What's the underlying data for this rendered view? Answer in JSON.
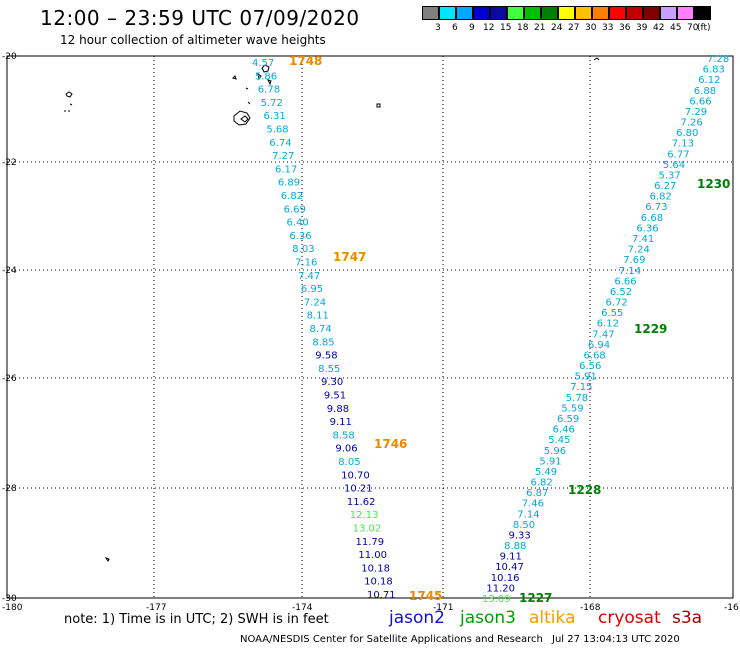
{
  "header": {
    "title": "12:00 – 23:59 UTC 07/09/2020",
    "subtitle": "12 hour collection of altimeter wave heights"
  },
  "colorbar": {
    "unit": "(ft)",
    "labels": [
      "3",
      "6",
      "9",
      "12",
      "15",
      "18",
      "21",
      "24",
      "27",
      "30",
      "33",
      "36",
      "39",
      "42",
      "45",
      "70"
    ],
    "colors": [
      "#808080",
      "#00e5ff",
      "#00a8ff",
      "#0000d0",
      "#0a0aa0",
      "#40ff40",
      "#00c000",
      "#008000",
      "#ffff00",
      "#ffc000",
      "#ff8000",
      "#ff0000",
      "#c00000",
      "#800000",
      "#c8a0ff",
      "#ff80ff",
      "#000000"
    ]
  },
  "axes": {
    "lat_labels": [
      "-20",
      "-22",
      "-24",
      "-26",
      "-28",
      "-30"
    ],
    "lon_labels": [
      "-180",
      "-177",
      "-174",
      "-171",
      "-168",
      "-16"
    ]
  },
  "track_colors": {
    "light": "#00aadd",
    "dark": "#0000b0",
    "green": "#50e050"
  },
  "track1": [
    {
      "t": "4.57",
      "c": "light"
    },
    {
      "t": "5.86",
      "c": "light"
    },
    {
      "t": "6.78",
      "c": "light"
    },
    {
      "t": "5.72",
      "c": "light"
    },
    {
      "t": "6.31",
      "c": "light"
    },
    {
      "t": "5.68",
      "c": "light"
    },
    {
      "t": "6.74",
      "c": "light"
    },
    {
      "t": "7.27",
      "c": "light"
    },
    {
      "t": "6.17",
      "c": "light"
    },
    {
      "t": "6.89",
      "c": "light"
    },
    {
      "t": "6.82",
      "c": "light"
    },
    {
      "t": "6.69",
      "c": "light"
    },
    {
      "t": "6.40",
      "c": "light"
    },
    {
      "t": "6.36",
      "c": "light"
    },
    {
      "t": "8.03",
      "c": "light"
    },
    {
      "t": "7.16",
      "c": "light"
    },
    {
      "t": "7.47",
      "c": "light"
    },
    {
      "t": "6.95",
      "c": "light"
    },
    {
      "t": "7.24",
      "c": "light"
    },
    {
      "t": "8.11",
      "c": "light"
    },
    {
      "t": "8.74",
      "c": "light"
    },
    {
      "t": "8.85",
      "c": "light"
    },
    {
      "t": "9.58",
      "c": "dark"
    },
    {
      "t": "8.55",
      "c": "light"
    },
    {
      "t": "9.30",
      "c": "dark"
    },
    {
      "t": "9.51",
      "c": "dark"
    },
    {
      "t": "9.88",
      "c": "dark"
    },
    {
      "t": "9.11",
      "c": "dark"
    },
    {
      "t": "8.58",
      "c": "light"
    },
    {
      "t": "9.06",
      "c": "dark"
    },
    {
      "t": "8.05",
      "c": "light"
    },
    {
      "t": "10.70",
      "c": "dark"
    },
    {
      "t": "10.21",
      "c": "dark"
    },
    {
      "t": "11.62",
      "c": "dark"
    },
    {
      "t": "12.13",
      "c": "green"
    },
    {
      "t": "13.02",
      "c": "green"
    },
    {
      "t": "11.79",
      "c": "dark"
    },
    {
      "t": "11.00",
      "c": "dark"
    },
    {
      "t": "10.18",
      "c": "dark"
    },
    {
      "t": "10.18",
      "c": "dark"
    },
    {
      "t": "10.71",
      "c": "dark"
    }
  ],
  "track1_times": [
    "1748",
    "1747",
    "1746",
    "1745"
  ],
  "track2": [
    {
      "t": "7.28",
      "c": "light"
    },
    {
      "t": "6.83",
      "c": "light"
    },
    {
      "t": "6.12",
      "c": "light"
    },
    {
      "t": "6.88",
      "c": "light"
    },
    {
      "t": "6.66",
      "c": "light"
    },
    {
      "t": "7.29",
      "c": "light"
    },
    {
      "t": "7.26",
      "c": "light"
    },
    {
      "t": "6.80",
      "c": "light"
    },
    {
      "t": "7.13",
      "c": "light"
    },
    {
      "t": "6.77",
      "c": "light"
    },
    {
      "t": "5.64",
      "c": "light"
    },
    {
      "t": "5.37",
      "c": "light"
    },
    {
      "t": "6.27",
      "c": "light"
    },
    {
      "t": "6.82",
      "c": "light"
    },
    {
      "t": "6.73",
      "c": "light"
    },
    {
      "t": "6.68",
      "c": "light"
    },
    {
      "t": "6.36",
      "c": "light"
    },
    {
      "t": "7.41",
      "c": "light"
    },
    {
      "t": "7.24",
      "c": "light"
    },
    {
      "t": "7.69",
      "c": "light"
    },
    {
      "t": "7.14",
      "c": "light"
    },
    {
      "t": "6.66",
      "c": "light"
    },
    {
      "t": "6.52",
      "c": "light"
    },
    {
      "t": "6.72",
      "c": "light"
    },
    {
      "t": "6.55",
      "c": "light"
    },
    {
      "t": "6.12",
      "c": "light"
    },
    {
      "t": "7.47",
      "c": "light"
    },
    {
      "t": "6.94",
      "c": "light"
    },
    {
      "t": "6.68",
      "c": "light"
    },
    {
      "t": "6.56",
      "c": "light"
    },
    {
      "t": "5.91",
      "c": "light"
    },
    {
      "t": "7.15",
      "c": "light"
    },
    {
      "t": "5.78",
      "c": "light"
    },
    {
      "t": "5.59",
      "c": "light"
    },
    {
      "t": "6.59",
      "c": "light"
    },
    {
      "t": "6.46",
      "c": "light"
    },
    {
      "t": "5.45",
      "c": "light"
    },
    {
      "t": "5.96",
      "c": "light"
    },
    {
      "t": "5.91",
      "c": "light"
    },
    {
      "t": "5.49",
      "c": "light"
    },
    {
      "t": "6.82",
      "c": "light"
    },
    {
      "t": "6.87",
      "c": "light"
    },
    {
      "t": "7.46",
      "c": "light"
    },
    {
      "t": "7.14",
      "c": "light"
    },
    {
      "t": "8.50",
      "c": "light"
    },
    {
      "t": "9.33",
      "c": "dark"
    },
    {
      "t": "8.88",
      "c": "light"
    },
    {
      "t": "9.11",
      "c": "dark"
    },
    {
      "t": "10.47",
      "c": "dark"
    },
    {
      "t": "10.16",
      "c": "dark"
    },
    {
      "t": "11.20",
      "c": "dark"
    },
    {
      "t": "13.09",
      "c": "green"
    }
  ],
  "track2_times": [
    "1230",
    "1229",
    "1228",
    "1227"
  ],
  "footer": {
    "note": "note:  1) Time is in UTC;  2) SWH is in feet",
    "satellites": [
      {
        "name": "jason2",
        "color": "#1010d0"
      },
      {
        "name": "jason3",
        "color": "#00a000"
      },
      {
        "name": "altika",
        "color": "#ff9900"
      },
      {
        "name": "cryosat",
        "color": "#e00000"
      },
      {
        "name": "s3a",
        "color": "#a00000"
      }
    ],
    "credit": "NOAA/NESDIS Center for Satellite Applications and Research",
    "timestamp": "Jul 27 13:04:13 UTC 2020"
  }
}
